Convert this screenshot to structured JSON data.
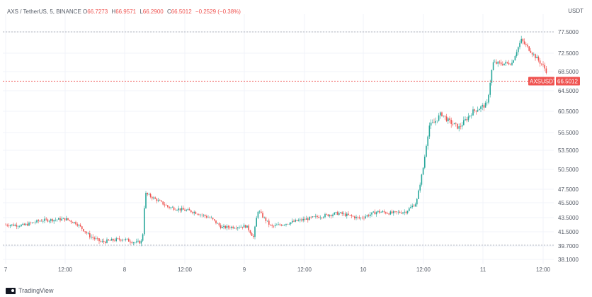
{
  "legend": {
    "symbol": "AXS / TetherUS, 5, BINANCE",
    "open_label": "O",
    "open": "66.7273",
    "high_label": "H",
    "high": "66.9571",
    "low_label": "L",
    "low": "66.2900",
    "close_label": "C",
    "close": "66.5012",
    "change": "−0.2529 (−0.38%)"
  },
  "currency": "USDT",
  "price_tag": {
    "label": "AXSUSDT",
    "value": "66.5012",
    "color": "#ef5350"
  },
  "branding": "TradingView",
  "colors": {
    "up": "#26a69a",
    "down": "#ef5350"
  },
  "chart_data": {
    "type": "candlestick",
    "symbol": "AXSUSDT",
    "ylim": [
      38.1,
      79.5
    ],
    "y_ticks": [
      "77.5000",
      "72.5000",
      "68.5000",
      "64.5000",
      "60.5000",
      "56.5000",
      "53.5000",
      "50.5000",
      "47.5000",
      "45.5000",
      "43.5000",
      "41.5000",
      "39.7000",
      "38.1000"
    ],
    "x_ticks": [
      "7",
      "12:00",
      "8",
      "12:00",
      "9",
      "12:00",
      "10",
      "12:00",
      "11",
      "12:00"
    ],
    "horizontal_lines": [
      77.5,
      39.8
    ],
    "last_price": 66.5012,
    "path_anchors": [
      [
        0,
        42.5
      ],
      [
        25,
        42.4
      ],
      [
        50,
        43.1
      ],
      [
        85,
        43.3
      ],
      [
        100,
        42.7
      ],
      [
        118,
        41.0
      ],
      [
        135,
        40.2
      ],
      [
        165,
        40.6
      ],
      [
        185,
        40.1
      ],
      [
        193,
        40.3
      ],
      [
        197,
        46.9
      ],
      [
        230,
        44.9
      ],
      [
        265,
        44.3
      ],
      [
        290,
        43.4
      ],
      [
        305,
        42.1
      ],
      [
        340,
        42.3
      ],
      [
        350,
        40.8
      ],
      [
        356,
        44.5
      ],
      [
        375,
        42.2
      ],
      [
        410,
        43.0
      ],
      [
        440,
        43.6
      ],
      [
        470,
        44.1
      ],
      [
        500,
        43.4
      ],
      [
        525,
        44.3
      ],
      [
        545,
        44.1
      ],
      [
        565,
        44.3
      ],
      [
        580,
        45.5
      ],
      [
        590,
        51.0
      ],
      [
        598,
        57.8
      ],
      [
        605,
        58.3
      ],
      [
        615,
        60.1
      ],
      [
        625,
        58.7
      ],
      [
        640,
        57.4
      ],
      [
        660,
        60.5
      ],
      [
        680,
        61.9
      ],
      [
        688,
        70.4
      ],
      [
        700,
        70.2
      ],
      [
        715,
        70.4
      ],
      [
        728,
        75.6
      ],
      [
        745,
        72.3
      ],
      [
        760,
        69.5
      ],
      [
        772,
        66.5
      ]
    ]
  }
}
